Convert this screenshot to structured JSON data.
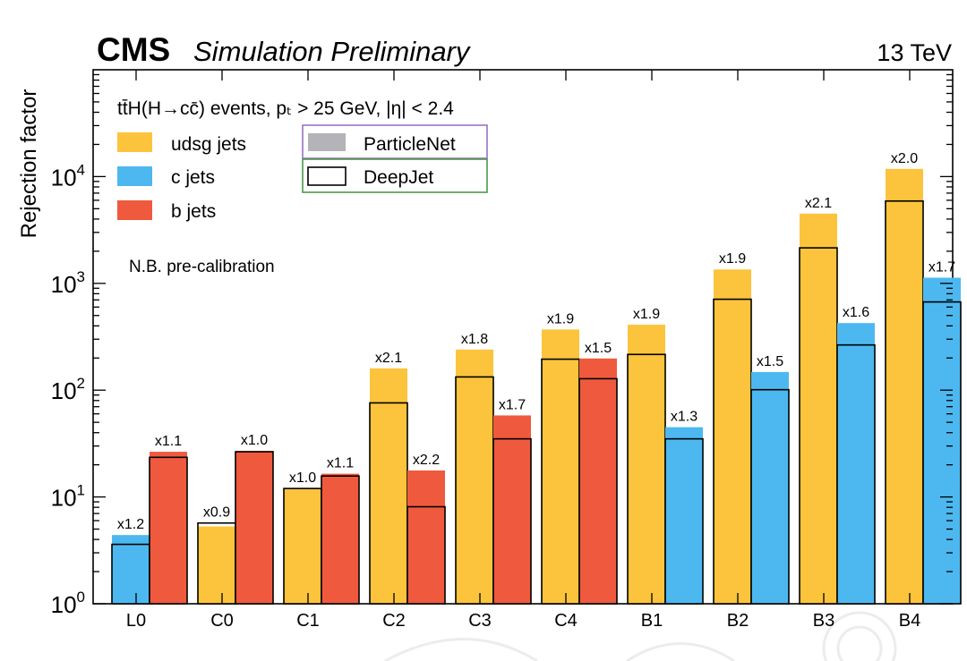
{
  "header": {
    "cms": "CMS",
    "status": "Simulation Preliminary",
    "energy": "13 TeV"
  },
  "process_label": "tt̄H(H→cc̄) events, pₜ > 25 GeV, |η| < 2.4",
  "note": "N.B. pre-calibration",
  "colors": {
    "udsg": "#fbc43c",
    "c": "#4db8f0",
    "b": "#ef5a3e",
    "particlenet_legend_box": "#9a72c4",
    "deepjet_legend_box": "#4a9a4a",
    "particlenet_swatch": "#b3b3b8"
  },
  "legend_flavour": [
    {
      "key": "udsg",
      "label": "udsg jets"
    },
    {
      "key": "c",
      "label": "c jets"
    },
    {
      "key": "b",
      "label": "b jets"
    }
  ],
  "legend_tagger": [
    {
      "key": "particlenet",
      "label": "ParticleNet"
    },
    {
      "key": "deepjet",
      "label": "DeepJet"
    }
  ],
  "chart_data": {
    "type": "bar",
    "ylabel": "Rejection factor",
    "yscale": "log",
    "ylim": [
      1,
      100000
    ],
    "yticks": [
      {
        "value": 1,
        "base": "10",
        "exp": "0"
      },
      {
        "value": 10,
        "base": "10",
        "exp": "1"
      },
      {
        "value": 100,
        "base": "10",
        "exp": "2"
      },
      {
        "value": 1000,
        "base": "10",
        "exp": "3"
      },
      {
        "value": 10000,
        "base": "10",
        "exp": "4"
      }
    ],
    "categories": [
      "L0",
      "C0",
      "C1",
      "C2",
      "C3",
      "C4",
      "B1",
      "B2",
      "B3",
      "B4"
    ],
    "bars": [
      {
        "category": "L0",
        "flavour": "c",
        "particlenet": 4.4,
        "deepjet": 3.6,
        "ratio": "x1.2"
      },
      {
        "category": "L0",
        "flavour": "b",
        "particlenet": 26.5,
        "deepjet": 23.5,
        "ratio": "x1.1"
      },
      {
        "category": "C0",
        "flavour": "udsg",
        "particlenet": 5.3,
        "deepjet": 5.7,
        "ratio": "x0.9"
      },
      {
        "category": "C0",
        "flavour": "b",
        "particlenet": 27.0,
        "deepjet": 26.5,
        "ratio": "x1.0"
      },
      {
        "category": "C1",
        "flavour": "udsg",
        "particlenet": 12.0,
        "deepjet": 12.0,
        "ratio": "x1.0"
      },
      {
        "category": "C1",
        "flavour": "b",
        "particlenet": 16.5,
        "deepjet": 15.7,
        "ratio": "x1.1"
      },
      {
        "category": "C2",
        "flavour": "udsg",
        "particlenet": 160,
        "deepjet": 76,
        "ratio": "x2.1"
      },
      {
        "category": "C2",
        "flavour": "b",
        "particlenet": 17.7,
        "deepjet": 8.1,
        "ratio": "x2.2"
      },
      {
        "category": "C3",
        "flavour": "udsg",
        "particlenet": 240,
        "deepjet": 133,
        "ratio": "x1.8"
      },
      {
        "category": "C3",
        "flavour": "b",
        "particlenet": 58,
        "deepjet": 35,
        "ratio": "x1.7"
      },
      {
        "category": "C4",
        "flavour": "udsg",
        "particlenet": 370,
        "deepjet": 195,
        "ratio": "x1.9"
      },
      {
        "category": "C4",
        "flavour": "b",
        "particlenet": 198,
        "deepjet": 128,
        "ratio": "x1.5"
      },
      {
        "category": "B1",
        "flavour": "udsg",
        "particlenet": 410,
        "deepjet": 216,
        "ratio": "x1.9"
      },
      {
        "category": "B1",
        "flavour": "c",
        "particlenet": 45,
        "deepjet": 35,
        "ratio": "x1.3"
      },
      {
        "category": "B2",
        "flavour": "udsg",
        "particlenet": 1350,
        "deepjet": 710,
        "ratio": "x1.9"
      },
      {
        "category": "B2",
        "flavour": "c",
        "particlenet": 148,
        "deepjet": 101,
        "ratio": "x1.5"
      },
      {
        "category": "B3",
        "flavour": "udsg",
        "particlenet": 4500,
        "deepjet": 2150,
        "ratio": "x2.1"
      },
      {
        "category": "B3",
        "flavour": "c",
        "particlenet": 425,
        "deepjet": 265,
        "ratio": "x1.6"
      },
      {
        "category": "B4",
        "flavour": "udsg",
        "particlenet": 11800,
        "deepjet": 5900,
        "ratio": "x2.0"
      },
      {
        "category": "B4",
        "flavour": "c",
        "particlenet": 1130,
        "deepjet": 670,
        "ratio": "x1.7"
      }
    ]
  }
}
